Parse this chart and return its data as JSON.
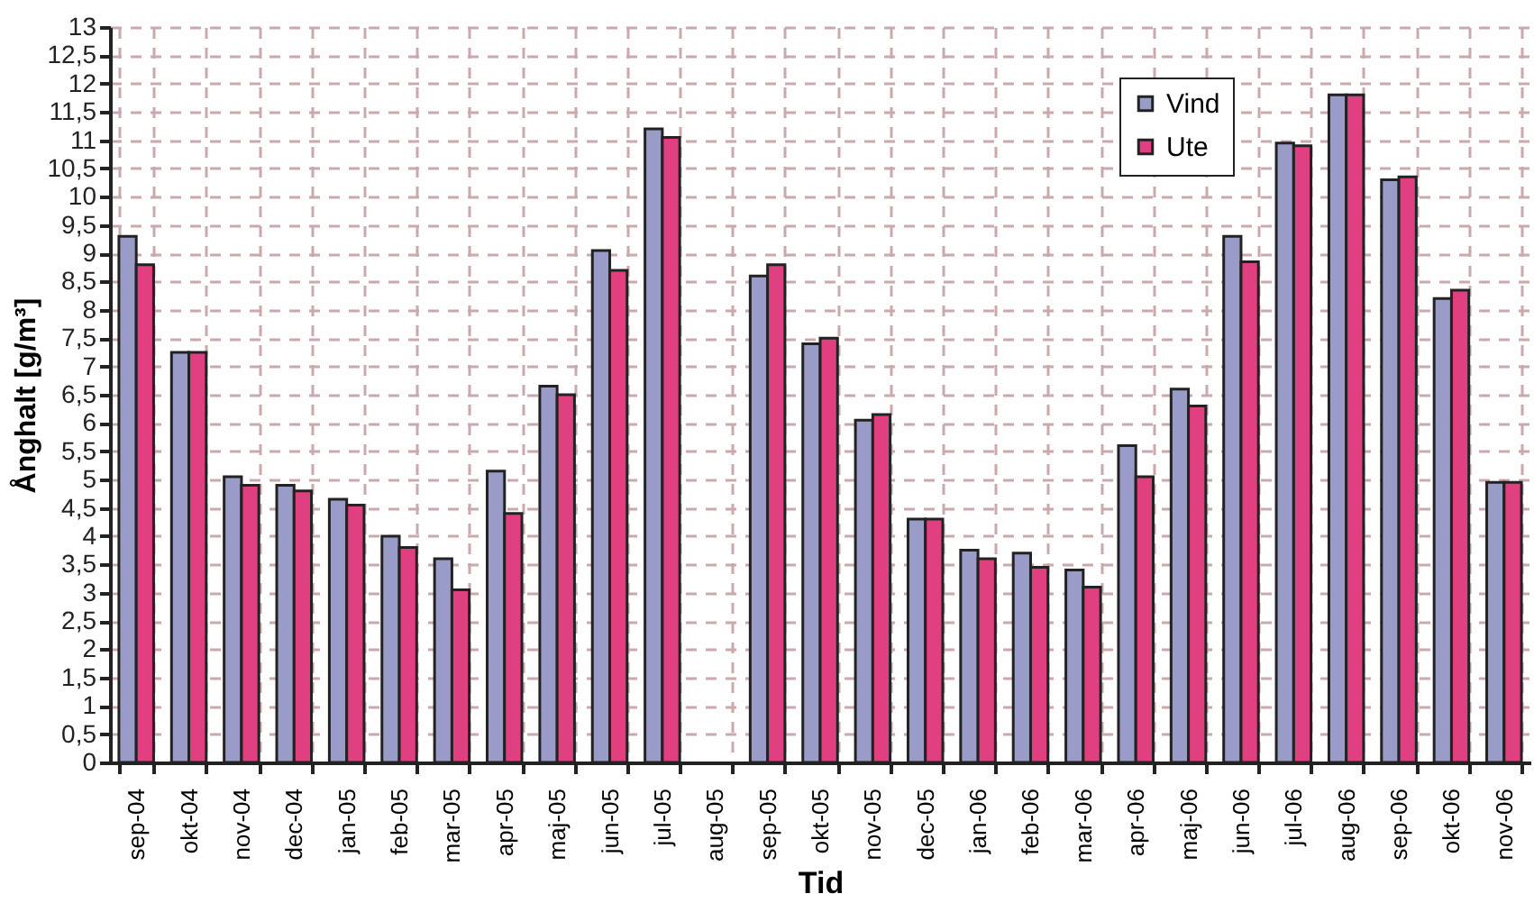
{
  "chart_data": {
    "type": "bar",
    "xlabel": "Tid",
    "ylabel": "Ånghalt [g/m³]",
    "categories": [
      "sep-04",
      "okt-04",
      "nov-04",
      "dec-04",
      "jan-05",
      "feb-05",
      "mar-05",
      "apr-05",
      "maj-05",
      "jun-05",
      "jul-05",
      "aug-05",
      "sep-05",
      "okt-05",
      "nov-05",
      "dec-05",
      "jan-06",
      "feb-06",
      "mar-06",
      "apr-06",
      "maj-06",
      "jun-06",
      "jul-06",
      "aug-06",
      "sep-06",
      "okt-06",
      "nov-06"
    ],
    "series": [
      {
        "name": "Vind",
        "color": "#9a9cc8",
        "values": [
          9.3,
          7.25,
          5.05,
          4.9,
          4.65,
          4.0,
          3.6,
          5.15,
          6.65,
          9.05,
          11.2,
          null,
          8.6,
          7.4,
          6.05,
          4.3,
          3.75,
          3.7,
          3.4,
          5.6,
          6.6,
          9.3,
          10.95,
          11.8,
          10.3,
          8.2,
          4.95
        ]
      },
      {
        "name": "Ute",
        "color": "#e0407f",
        "values": [
          8.8,
          7.25,
          4.9,
          4.8,
          4.55,
          3.8,
          3.05,
          4.4,
          6.5,
          8.7,
          11.05,
          null,
          8.8,
          7.5,
          6.15,
          4.3,
          3.6,
          3.45,
          3.1,
          5.05,
          6.3,
          8.85,
          10.9,
          11.8,
          10.35,
          8.35,
          4.95
        ]
      }
    ],
    "ylim": [
      0,
      13
    ],
    "yticks": [
      0,
      {
        "value": 0.5,
        "label": "0,5"
      },
      1,
      {
        "value": 1.5,
        "label": "1,5"
      },
      2,
      {
        "value": 2.5,
        "label": "2,5"
      },
      3,
      {
        "value": 3.5,
        "label": "3,5"
      },
      4,
      {
        "value": 4.5,
        "label": "4,5"
      },
      5,
      {
        "value": 5.5,
        "label": "5,5"
      },
      6,
      {
        "value": 6.5,
        "label": "6,5"
      },
      7,
      {
        "value": 7.5,
        "label": "7,5"
      },
      8,
      {
        "value": 8.5,
        "label": "8,5"
      },
      9,
      {
        "value": 9.5,
        "label": "9,5"
      },
      10,
      {
        "value": 10.5,
        "label": "10,5"
      },
      11,
      {
        "value": 11.5,
        "label": "11,5"
      },
      12,
      {
        "value": 12.5,
        "label": "12,5"
      },
      13
    ],
    "grid": true,
    "legend": "top right"
  }
}
